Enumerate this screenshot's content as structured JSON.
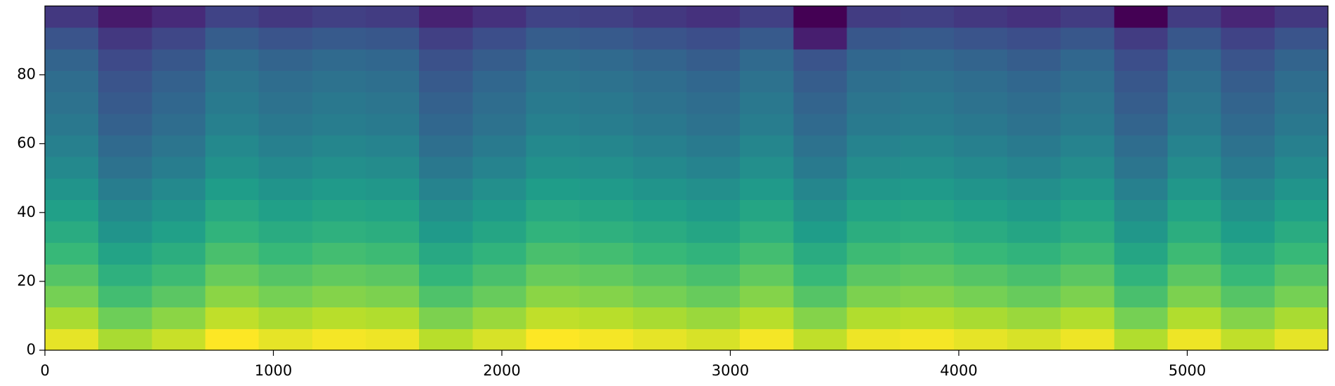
{
  "chart_data": {
    "type": "heatmap",
    "colormap": "viridis",
    "xlim": [
      0,
      5616
    ],
    "ylim": [
      0,
      100
    ],
    "xticks": [
      0,
      1000,
      2000,
      3000,
      4000,
      5000
    ],
    "yticks": [
      0,
      20,
      40,
      60,
      80
    ],
    "x_edges": [
      0,
      234,
      468,
      702,
      936,
      1170,
      1404,
      1638,
      1872,
      2106,
      2340,
      2574,
      2808,
      3042,
      3276,
      3510,
      3744,
      3978,
      4212,
      4446,
      4680,
      4914,
      5148,
      5382,
      5616
    ],
    "y_edges": [
      0,
      6.25,
      12.5,
      18.75,
      25,
      31.25,
      37.5,
      43.75,
      50,
      56.25,
      62.5,
      68.75,
      75,
      81.25,
      87.5,
      93.75,
      100
    ],
    "z": [
      [
        0.9,
        0.82,
        0.86,
        0.93,
        0.9,
        0.92,
        0.91,
        0.84,
        0.88,
        0.93,
        0.92,
        0.9,
        0.88,
        0.92,
        0.85,
        0.91,
        0.92,
        0.9,
        0.88,
        0.91,
        0.83,
        0.91,
        0.85,
        0.9
      ],
      [
        0.82,
        0.74,
        0.78,
        0.85,
        0.82,
        0.84,
        0.83,
        0.76,
        0.8,
        0.85,
        0.84,
        0.82,
        0.8,
        0.84,
        0.77,
        0.83,
        0.84,
        0.82,
        0.8,
        0.83,
        0.75,
        0.83,
        0.77,
        0.82
      ],
      [
        0.75,
        0.67,
        0.71,
        0.78,
        0.75,
        0.77,
        0.76,
        0.69,
        0.73,
        0.78,
        0.77,
        0.75,
        0.73,
        0.77,
        0.7,
        0.76,
        0.77,
        0.75,
        0.73,
        0.76,
        0.68,
        0.76,
        0.7,
        0.75
      ],
      [
        0.7,
        0.62,
        0.66,
        0.73,
        0.7,
        0.72,
        0.71,
        0.64,
        0.68,
        0.73,
        0.72,
        0.7,
        0.68,
        0.72,
        0.65,
        0.71,
        0.72,
        0.7,
        0.68,
        0.71,
        0.63,
        0.71,
        0.65,
        0.7
      ],
      [
        0.65,
        0.57,
        0.61,
        0.68,
        0.65,
        0.67,
        0.66,
        0.59,
        0.63,
        0.68,
        0.67,
        0.65,
        0.63,
        0.67,
        0.6,
        0.66,
        0.67,
        0.65,
        0.63,
        0.66,
        0.58,
        0.66,
        0.6,
        0.65
      ],
      [
        0.6,
        0.52,
        0.56,
        0.63,
        0.6,
        0.62,
        0.61,
        0.54,
        0.58,
        0.63,
        0.62,
        0.6,
        0.58,
        0.62,
        0.55,
        0.61,
        0.62,
        0.6,
        0.58,
        0.61,
        0.53,
        0.61,
        0.55,
        0.6
      ],
      [
        0.56,
        0.48,
        0.52,
        0.59,
        0.56,
        0.58,
        0.57,
        0.5,
        0.54,
        0.59,
        0.58,
        0.56,
        0.54,
        0.58,
        0.51,
        0.57,
        0.58,
        0.56,
        0.54,
        0.57,
        0.49,
        0.57,
        0.51,
        0.56
      ],
      [
        0.52,
        0.44,
        0.48,
        0.55,
        0.52,
        0.54,
        0.53,
        0.46,
        0.5,
        0.55,
        0.54,
        0.52,
        0.5,
        0.54,
        0.47,
        0.53,
        0.54,
        0.52,
        0.5,
        0.53,
        0.45,
        0.53,
        0.47,
        0.52
      ],
      [
        0.48,
        0.4,
        0.44,
        0.51,
        0.48,
        0.5,
        0.49,
        0.42,
        0.46,
        0.51,
        0.5,
        0.48,
        0.46,
        0.5,
        0.43,
        0.49,
        0.5,
        0.48,
        0.46,
        0.49,
        0.41,
        0.49,
        0.43,
        0.48
      ],
      [
        0.45,
        0.37,
        0.41,
        0.48,
        0.45,
        0.47,
        0.46,
        0.39,
        0.43,
        0.48,
        0.47,
        0.45,
        0.43,
        0.47,
        0.4,
        0.46,
        0.47,
        0.45,
        0.43,
        0.46,
        0.38,
        0.46,
        0.4,
        0.45
      ],
      [
        0.42,
        0.34,
        0.38,
        0.45,
        0.42,
        0.44,
        0.43,
        0.36,
        0.4,
        0.45,
        0.44,
        0.42,
        0.4,
        0.44,
        0.37,
        0.43,
        0.44,
        0.42,
        0.4,
        0.43,
        0.35,
        0.43,
        0.37,
        0.42
      ],
      [
        0.4,
        0.32,
        0.36,
        0.43,
        0.4,
        0.42,
        0.41,
        0.34,
        0.38,
        0.43,
        0.42,
        0.4,
        0.38,
        0.42,
        0.35,
        0.41,
        0.42,
        0.4,
        0.38,
        0.41,
        0.33,
        0.41,
        0.35,
        0.4
      ],
      [
        0.38,
        0.3,
        0.34,
        0.41,
        0.38,
        0.4,
        0.39,
        0.32,
        0.36,
        0.41,
        0.4,
        0.38,
        0.36,
        0.4,
        0.33,
        0.39,
        0.4,
        0.38,
        0.36,
        0.39,
        0.31,
        0.39,
        0.33,
        0.38
      ],
      [
        0.35,
        0.27,
        0.31,
        0.38,
        0.35,
        0.37,
        0.36,
        0.29,
        0.33,
        0.38,
        0.37,
        0.35,
        0.33,
        0.37,
        0.3,
        0.36,
        0.37,
        0.35,
        0.33,
        0.36,
        0.28,
        0.36,
        0.3,
        0.35
      ],
      [
        0.3,
        0.22,
        0.26,
        0.33,
        0.3,
        0.32,
        0.31,
        0.24,
        0.28,
        0.33,
        0.32,
        0.3,
        0.28,
        0.32,
        0.15,
        0.31,
        0.32,
        0.3,
        0.28,
        0.31,
        0.23,
        0.31,
        0.25,
        0.3
      ],
      [
        0.22,
        0.14,
        0.18,
        0.25,
        0.22,
        0.24,
        0.23,
        0.16,
        0.2,
        0.25,
        0.24,
        0.22,
        0.2,
        0.24,
        0.08,
        0.23,
        0.24,
        0.22,
        0.2,
        0.23,
        0.08,
        0.23,
        0.17,
        0.22
      ]
    ]
  }
}
